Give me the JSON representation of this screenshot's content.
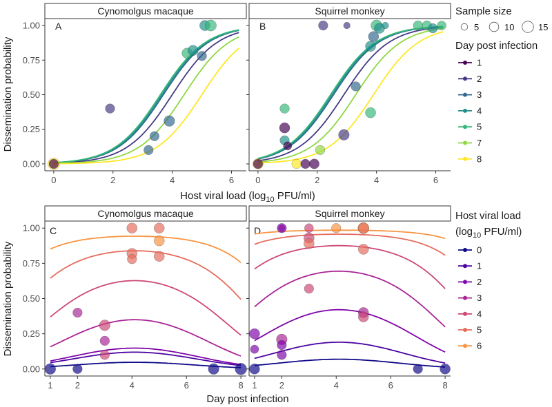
{
  "figure": {
    "top_row": {
      "ylabel": "Dissemination probability",
      "xlabel_parts": [
        "Host viral load (log",
        "10",
        " PFU/ml)"
      ]
    },
    "bottom_row": {
      "ylabel": "Dissemination probability",
      "xlabel": "Day post infection"
    },
    "legend_sample": {
      "title": "Sample size",
      "labels": [
        "5",
        "10",
        "15"
      ]
    },
    "legend_day": {
      "title": "Day post infection",
      "labels": [
        "1",
        "2",
        "3",
        "4",
        "5",
        "7",
        "8"
      ]
    },
    "legend_load": {
      "title_line1": "Host viral load",
      "title_line2_parts": [
        "(log",
        "10",
        " PFU/ml)"
      ],
      "labels": [
        "0",
        "1",
        "2",
        "3",
        "4",
        "5",
        "6"
      ]
    }
  },
  "colors": {
    "day_palette": [
      "#440154",
      "#443a83",
      "#31688e",
      "#21908c",
      "#35b779",
      "#8fd744",
      "#fde725"
    ],
    "load_palette": [
      "#0d0887",
      "#4c02a1",
      "#7e03a8",
      "#a92395",
      "#cc4778",
      "#e56b5d",
      "#f89441",
      "#fdc328"
    ]
  },
  "chart_data": [
    {
      "id": "A",
      "type": "scatter",
      "strip": "Cynomolgus macaque",
      "letter": "A",
      "x_var": "Host viral load (log10 PFU/ml)",
      "xlim": [
        -0.3,
        6.5
      ],
      "ylim": [
        -0.05,
        1.05
      ],
      "x_ticks": [
        0,
        2,
        4,
        6
      ],
      "y_ticks": [
        0.0,
        0.25,
        0.5,
        0.75,
        1.0
      ],
      "curve_type": "logistic",
      "curves": [
        {
          "day": "2",
          "midpoint": 4.0,
          "slope": 1.3
        },
        {
          "day": "3",
          "midpoint": 3.7,
          "slope": 1.3
        },
        {
          "day": "4",
          "midpoint": 3.65,
          "slope": 1.3
        },
        {
          "day": "5",
          "midpoint": 3.6,
          "slope": 1.3
        },
        {
          "day": "7",
          "midpoint": 4.4,
          "slope": 1.3
        },
        {
          "day": "8",
          "midpoint": 5.0,
          "slope": 1.3
        }
      ],
      "points": [
        {
          "x": 0.0,
          "y": 0.0,
          "n": 15,
          "day": "8"
        },
        {
          "x": 0.0,
          "y": 0.0,
          "n": 10,
          "day": "1"
        },
        {
          "x": 1.9,
          "y": 0.4,
          "n": 10,
          "day": "2"
        },
        {
          "x": 3.2,
          "y": 0.1,
          "n": 10,
          "day": "3"
        },
        {
          "x": 3.4,
          "y": 0.2,
          "n": 10,
          "day": "3"
        },
        {
          "x": 3.9,
          "y": 0.31,
          "n": 13,
          "day": "3"
        },
        {
          "x": 4.5,
          "y": 0.8,
          "n": 12,
          "day": "5"
        },
        {
          "x": 4.7,
          "y": 0.82,
          "n": 12,
          "day": "4"
        },
        {
          "x": 5.0,
          "y": 0.78,
          "n": 10,
          "day": "3"
        },
        {
          "x": 5.1,
          "y": 1.0,
          "n": 12,
          "day": "4"
        },
        {
          "x": 5.3,
          "y": 1.0,
          "n": 14,
          "day": "5"
        }
      ]
    },
    {
      "id": "B",
      "type": "scatter",
      "strip": "Squirrel monkey",
      "letter": "B",
      "x_var": "Host viral load (log10 PFU/ml)",
      "xlim": [
        -0.3,
        6.5
      ],
      "ylim": [
        -0.05,
        1.05
      ],
      "x_ticks": [
        0,
        2,
        4,
        6
      ],
      "y_ticks": [
        0.0,
        0.25,
        0.5,
        0.75,
        1.0
      ],
      "curve_type": "logistic",
      "curves": [
        {
          "day": "2",
          "midpoint": 2.9,
          "slope": 1.3
        },
        {
          "day": "3",
          "midpoint": 2.55,
          "slope": 1.3
        },
        {
          "day": "4",
          "midpoint": 2.5,
          "slope": 1.3
        },
        {
          "day": "5",
          "midpoint": 2.45,
          "slope": 1.3
        },
        {
          "day": "7",
          "midpoint": 3.3,
          "slope": 1.3
        },
        {
          "day": "8",
          "midpoint": 3.9,
          "slope": 1.3
        }
      ],
      "points": [
        {
          "x": 0.0,
          "y": 0.0,
          "n": 12,
          "day": "8"
        },
        {
          "x": 0.0,
          "y": 0.0,
          "n": 10,
          "day": "1"
        },
        {
          "x": 0.9,
          "y": 0.4,
          "n": 10,
          "day": "5"
        },
        {
          "x": 0.9,
          "y": 0.26,
          "n": 12,
          "day": "1"
        },
        {
          "x": 0.9,
          "y": 0.17,
          "n": 10,
          "day": "4"
        },
        {
          "x": 1.0,
          "y": 0.13,
          "n": 8,
          "day": "1"
        },
        {
          "x": 1.3,
          "y": 0.0,
          "n": 10,
          "day": "8"
        },
        {
          "x": 1.6,
          "y": 0.0,
          "n": 10,
          "day": "1"
        },
        {
          "x": 1.9,
          "y": 0.0,
          "n": 11,
          "day": "1"
        },
        {
          "x": 2.1,
          "y": 0.1,
          "n": 10,
          "day": "7"
        },
        {
          "x": 2.2,
          "y": 1.0,
          "n": 10,
          "day": "2"
        },
        {
          "x": 2.9,
          "y": 0.21,
          "n": 13,
          "day": "2"
        },
        {
          "x": 3.0,
          "y": 1.0,
          "n": 5,
          "day": "2"
        },
        {
          "x": 3.3,
          "y": 0.56,
          "n": 10,
          "day": "3"
        },
        {
          "x": 3.8,
          "y": 0.37,
          "n": 12,
          "day": "5"
        },
        {
          "x": 3.8,
          "y": 0.85,
          "n": 12,
          "day": "4"
        },
        {
          "x": 3.9,
          "y": 0.92,
          "n": 12,
          "day": "3"
        },
        {
          "x": 4.0,
          "y": 1.0,
          "n": 14,
          "day": "5"
        },
        {
          "x": 4.1,
          "y": 0.98,
          "n": 12,
          "day": "4"
        },
        {
          "x": 4.3,
          "y": 1.0,
          "n": 5,
          "day": "4"
        },
        {
          "x": 5.4,
          "y": 1.0,
          "n": 10,
          "day": "5"
        },
        {
          "x": 5.7,
          "y": 1.0,
          "n": 10,
          "day": "5"
        },
        {
          "x": 5.9,
          "y": 0.98,
          "n": 10,
          "day": "4"
        },
        {
          "x": 6.2,
          "y": 1.0,
          "n": 9,
          "day": "5"
        }
      ]
    },
    {
      "id": "C",
      "type": "scatter",
      "strip": "Cynomolgus macaque",
      "letter": "C",
      "x_var": "Day post infection",
      "xlim": [
        0.8,
        8.2
      ],
      "ylim": [
        -0.05,
        1.05
      ],
      "x_ticks": [
        1,
        2,
        4,
        6,
        8
      ],
      "y_ticks": [
        0.0,
        0.25,
        0.5,
        0.75,
        1.0
      ],
      "curve_type": "gaussian_logit",
      "curves": [
        {
          "load": "0",
          "peak": -3.0,
          "center": 4.1,
          "curvature": 0.11
        },
        {
          "load": "1",
          "peak": -2.0,
          "center": 4.1,
          "curvature": 0.11
        },
        {
          "load": "2",
          "peak": -1.75,
          "center": 4.1,
          "curvature": 0.11
        },
        {
          "load": "3",
          "peak": -0.62,
          "center": 4.1,
          "curvature": 0.11
        },
        {
          "load": "4",
          "peak": 0.52,
          "center": 4.1,
          "curvature": 0.11
        },
        {
          "load": "5",
          "peak": 1.65,
          "center": 4.1,
          "curvature": 0.11
        },
        {
          "load": "6",
          "peak": 2.8,
          "center": 4.1,
          "curvature": 0.11
        }
      ],
      "points": [
        {
          "x": 1,
          "y": 0.0,
          "n": 13,
          "load": "0"
        },
        {
          "x": 2,
          "y": 0.0,
          "n": 10,
          "load": "0"
        },
        {
          "x": 2,
          "y": 0.4,
          "n": 10,
          "load": "3"
        },
        {
          "x": 3,
          "y": 0.31,
          "n": 13,
          "load": "4"
        },
        {
          "x": 3,
          "y": 0.2,
          "n": 10,
          "load": "3"
        },
        {
          "x": 3,
          "y": 0.1,
          "n": 10,
          "load": "4"
        },
        {
          "x": 4,
          "y": 1.0,
          "n": 12,
          "load": "5"
        },
        {
          "x": 4,
          "y": 0.82,
          "n": 12,
          "load": "5"
        },
        {
          "x": 4,
          "y": 0.78,
          "n": 10,
          "load": "5"
        },
        {
          "x": 5,
          "y": 1.0,
          "n": 12,
          "load": "5"
        },
        {
          "x": 5,
          "y": 0.91,
          "n": 12,
          "load": "6"
        },
        {
          "x": 5,
          "y": 0.8,
          "n": 12,
          "load": "5"
        },
        {
          "x": 7,
          "y": 0.0,
          "n": 13,
          "load": "0"
        },
        {
          "x": 8,
          "y": 0.0,
          "n": 15,
          "load": "0"
        }
      ]
    },
    {
      "id": "D",
      "type": "scatter",
      "strip": "Squirrel monkey",
      "letter": "D",
      "x_var": "Day post infection",
      "xlim": [
        0.8,
        8.2
      ],
      "ylim": [
        -0.05,
        1.05
      ],
      "x_ticks": [
        1,
        2,
        4,
        6,
        8
      ],
      "y_ticks": [
        0.0,
        0.25,
        0.5,
        0.75,
        1.0
      ],
      "curve_type": "gaussian_logit",
      "curves": [
        {
          "load": "0",
          "peak": -2.6,
          "center": 4.1,
          "curvature": 0.11
        },
        {
          "load": "1",
          "peak": -1.45,
          "center": 4.1,
          "curvature": 0.11
        },
        {
          "load": "2",
          "peak": -0.32,
          "center": 4.1,
          "curvature": 0.11
        },
        {
          "load": "3",
          "peak": 0.82,
          "center": 4.1,
          "curvature": 0.11
        },
        {
          "load": "4",
          "peak": 1.95,
          "center": 4.1,
          "curvature": 0.11
        },
        {
          "load": "5",
          "peak": 3.1,
          "center": 4.1,
          "curvature": 0.11
        },
        {
          "load": "6",
          "peak": 4.2,
          "center": 4.1,
          "curvature": 0.11
        }
      ],
      "points": [
        {
          "x": 1,
          "y": 0.0,
          "n": 12,
          "load": "0"
        },
        {
          "x": 1,
          "y": 0.25,
          "n": 12,
          "load": "2"
        },
        {
          "x": 1,
          "y": 0.14,
          "n": 8,
          "load": "2"
        },
        {
          "x": 2,
          "y": 1.0,
          "n": 5,
          "load": "3"
        },
        {
          "x": 2,
          "y": 1.0,
          "n": 10,
          "load": "2"
        },
        {
          "x": 2,
          "y": 0.21,
          "n": 13,
          "load": "3"
        },
        {
          "x": 2,
          "y": 0.17,
          "n": 10,
          "load": "2"
        },
        {
          "x": 2,
          "y": 0.1,
          "n": 10,
          "load": "2"
        },
        {
          "x": 3,
          "y": 1.0,
          "n": 9,
          "load": "4"
        },
        {
          "x": 3,
          "y": 0.93,
          "n": 12,
          "load": "4"
        },
        {
          "x": 3,
          "y": 0.89,
          "n": 12,
          "load": "5"
        },
        {
          "x": 3,
          "y": 0.57,
          "n": 10,
          "load": "4"
        },
        {
          "x": 4,
          "y": 1.0,
          "n": 10,
          "load": "6"
        },
        {
          "x": 5,
          "y": 1.0,
          "n": 14,
          "load": "6"
        },
        {
          "x": 5,
          "y": 1.0,
          "n": 12,
          "load": "5"
        },
        {
          "x": 5,
          "y": 0.85,
          "n": 12,
          "load": "5"
        },
        {
          "x": 5,
          "y": 0.4,
          "n": 12,
          "load": "3"
        },
        {
          "x": 5,
          "y": 0.37,
          "n": 12,
          "load": "4"
        },
        {
          "x": 7,
          "y": 0.0,
          "n": 10,
          "load": "0"
        },
        {
          "x": 8,
          "y": 0.0,
          "n": 12,
          "load": "0"
        }
      ]
    }
  ]
}
